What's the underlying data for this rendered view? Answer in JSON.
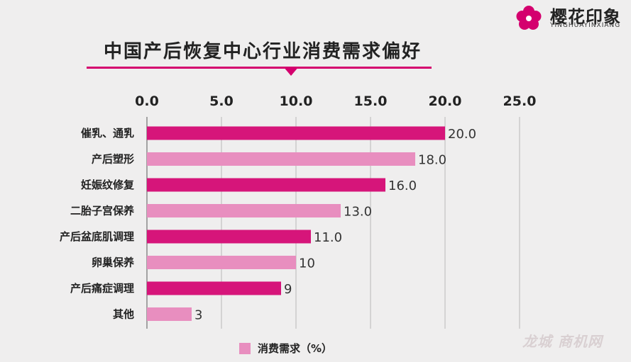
{
  "header": {
    "title": "中国产后恢复中心行业消费需求偏好",
    "logo_text": "樱花印象",
    "logo_sub": "YINGHUAYINXIANG",
    "watermark": "龙城 商机网"
  },
  "colors": {
    "accent": "#d4006e",
    "bar_dark": "#d6157a",
    "bar_light": "#e88ebf",
    "background": "#efeeee"
  },
  "chart_data": {
    "type": "bar",
    "orientation": "horizontal",
    "categories": [
      "催乳、通乳",
      "产后塑形",
      "妊娠纹修复",
      "二胎子宫保养",
      "产后盆底肌调理",
      "卵巢保养",
      "产后痛症调理",
      "其他"
    ],
    "values": [
      20.0,
      18.0,
      16.0,
      13.0,
      11.0,
      10,
      9,
      3
    ],
    "value_labels": [
      "20.0",
      "18.0",
      "16.0",
      "13.0",
      "11.0",
      "10",
      "9",
      "3"
    ],
    "xticks": [
      "0.0",
      "5.0",
      "10.0",
      "15.0",
      "20.0",
      "25.0"
    ],
    "xlim": [
      0,
      25
    ],
    "title": "中国产后恢复中心行业消费需求偏好",
    "series": [
      {
        "name": "消费需求（%）",
        "values": [
          20.0,
          18.0,
          16.0,
          13.0,
          11.0,
          10,
          9,
          3
        ]
      }
    ],
    "legend": "bottom",
    "grid": true
  }
}
